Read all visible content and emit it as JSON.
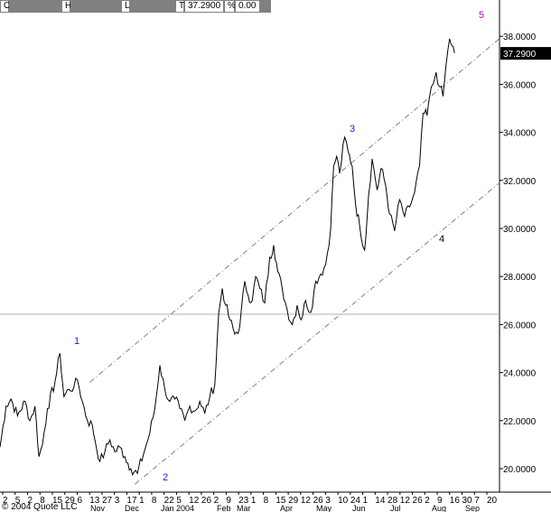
{
  "header": {
    "cells": [
      "O",
      "",
      "H",
      "",
      "L",
      "",
      "T",
      "37.2900",
      "%",
      "0.00"
    ]
  },
  "copyright": "© 2004 Quote LLC",
  "colors": {
    "price_line": "#000000",
    "channel": "#808080",
    "wave_blue": "#1a1adc",
    "wave_magenta": "#c000c0",
    "last_price_bg": "#000000",
    "last_price_text": "#ffffff"
  },
  "chart_data": {
    "type": "line",
    "title": "",
    "xlabel": "",
    "ylabel": "",
    "ylim": [
      19.2,
      38.6
    ],
    "y_ticks": [
      "20.0000",
      "22.0000",
      "24.0000",
      "26.0000",
      "28.0000",
      "30.0000",
      "32.0000",
      "34.0000",
      "36.0000",
      "38.0000"
    ],
    "x_day_labels": [
      "2",
      "5",
      "2",
      "8",
      "15",
      "29",
      "6",
      "13",
      "27",
      "3",
      "17",
      "1",
      "8",
      "22",
      "5",
      "12",
      "26",
      "2",
      "9",
      "23",
      "1",
      "8",
      "15",
      "29",
      "12",
      "26",
      "3",
      "10",
      "24",
      "1",
      "14",
      "28",
      "12",
      "26",
      "2",
      "9",
      "16",
      "30",
      "7",
      "20"
    ],
    "x_month_labels": [
      "Nov",
      "Dec",
      "Jan 2004",
      "Feb",
      "Mar",
      "Apr",
      "May",
      "Jun",
      "Jul",
      "Aug",
      "Sep"
    ],
    "last_price": "37.2900",
    "wave_labels": [
      "1",
      "2",
      "3",
      "4",
      "5"
    ],
    "channel": {
      "upper": {
        "from": [
          0.18,
          23.6
        ],
        "to": [
          1.0,
          37.9
        ]
      },
      "lower": {
        "from": [
          0.27,
          19.35
        ],
        "to": [
          1.0,
          31.9
        ]
      }
    },
    "price_keypoints": [
      [
        0.0,
        20.9
      ],
      [
        0.012,
        22.6
      ],
      [
        0.022,
        22.9
      ],
      [
        0.035,
        22.2
      ],
      [
        0.05,
        22.8
      ],
      [
        0.06,
        22.0
      ],
      [
        0.07,
        22.6
      ],
      [
        0.078,
        20.5
      ],
      [
        0.085,
        21.0
      ],
      [
        0.095,
        22.5
      ],
      [
        0.11,
        23.6
      ],
      [
        0.12,
        24.8
      ],
      [
        0.128,
        23.0
      ],
      [
        0.138,
        23.3
      ],
      [
        0.148,
        23.4
      ],
      [
        0.155,
        23.7
      ],
      [
        0.165,
        22.8
      ],
      [
        0.175,
        22.0
      ],
      [
        0.185,
        21.8
      ],
      [
        0.19,
        21.2
      ],
      [
        0.2,
        20.3
      ],
      [
        0.21,
        20.7
      ],
      [
        0.22,
        21.2
      ],
      [
        0.23,
        20.7
      ],
      [
        0.24,
        20.9
      ],
      [
        0.25,
        20.5
      ],
      [
        0.262,
        20.0
      ],
      [
        0.275,
        19.8
      ],
      [
        0.29,
        20.8
      ],
      [
        0.3,
        21.5
      ],
      [
        0.31,
        22.5
      ],
      [
        0.32,
        24.3
      ],
      [
        0.33,
        23.3
      ],
      [
        0.34,
        22.8
      ],
      [
        0.35,
        22.9
      ],
      [
        0.36,
        22.5
      ],
      [
        0.37,
        22.0
      ],
      [
        0.38,
        22.6
      ],
      [
        0.39,
        22.4
      ],
      [
        0.4,
        22.8
      ],
      [
        0.41,
        22.3
      ],
      [
        0.42,
        23.0
      ],
      [
        0.43,
        23.5
      ],
      [
        0.438,
        26.5
      ],
      [
        0.445,
        27.5
      ],
      [
        0.452,
        26.8
      ],
      [
        0.46,
        26.2
      ],
      [
        0.47,
        25.6
      ],
      [
        0.48,
        25.9
      ],
      [
        0.49,
        27.8
      ],
      [
        0.497,
        27.2
      ],
      [
        0.505,
        27.0
      ],
      [
        0.512,
        28.0
      ],
      [
        0.52,
        27.5
      ],
      [
        0.53,
        26.9
      ],
      [
        0.54,
        28.8
      ],
      [
        0.548,
        29.3
      ],
      [
        0.556,
        28.2
      ],
      [
        0.565,
        27.5
      ],
      [
        0.575,
        26.6
      ],
      [
        0.585,
        26.0
      ],
      [
        0.595,
        26.8
      ],
      [
        0.603,
        26.2
      ],
      [
        0.612,
        27.0
      ],
      [
        0.622,
        26.5
      ],
      [
        0.632,
        27.8
      ],
      [
        0.642,
        28.1
      ],
      [
        0.652,
        28.5
      ],
      [
        0.662,
        30.0
      ],
      [
        0.668,
        32.6
      ],
      [
        0.674,
        33.0
      ],
      [
        0.68,
        32.3
      ],
      [
        0.69,
        33.8
      ],
      [
        0.697,
        33.2
      ],
      [
        0.705,
        32.6
      ],
      [
        0.712,
        31.0
      ],
      [
        0.72,
        30.1
      ],
      [
        0.73,
        29.1
      ],
      [
        0.738,
        31.4
      ],
      [
        0.745,
        32.9
      ],
      [
        0.755,
        31.6
      ],
      [
        0.763,
        32.5
      ],
      [
        0.772,
        31.8
      ],
      [
        0.78,
        30.6
      ],
      [
        0.79,
        29.9
      ],
      [
        0.8,
        31.2
      ],
      [
        0.81,
        30.5
      ],
      [
        0.82,
        30.9
      ],
      [
        0.83,
        31.5
      ],
      [
        0.84,
        32.6
      ],
      [
        0.847,
        34.8
      ],
      [
        0.855,
        34.7
      ],
      [
        0.86,
        35.5
      ],
      [
        0.867,
        36.0
      ],
      [
        0.873,
        36.5
      ],
      [
        0.88,
        35.9
      ],
      [
        0.887,
        35.5
      ],
      [
        0.893,
        36.8
      ],
      [
        0.9,
        37.9
      ],
      [
        0.905,
        37.6
      ],
      [
        0.91,
        37.3
      ]
    ]
  }
}
